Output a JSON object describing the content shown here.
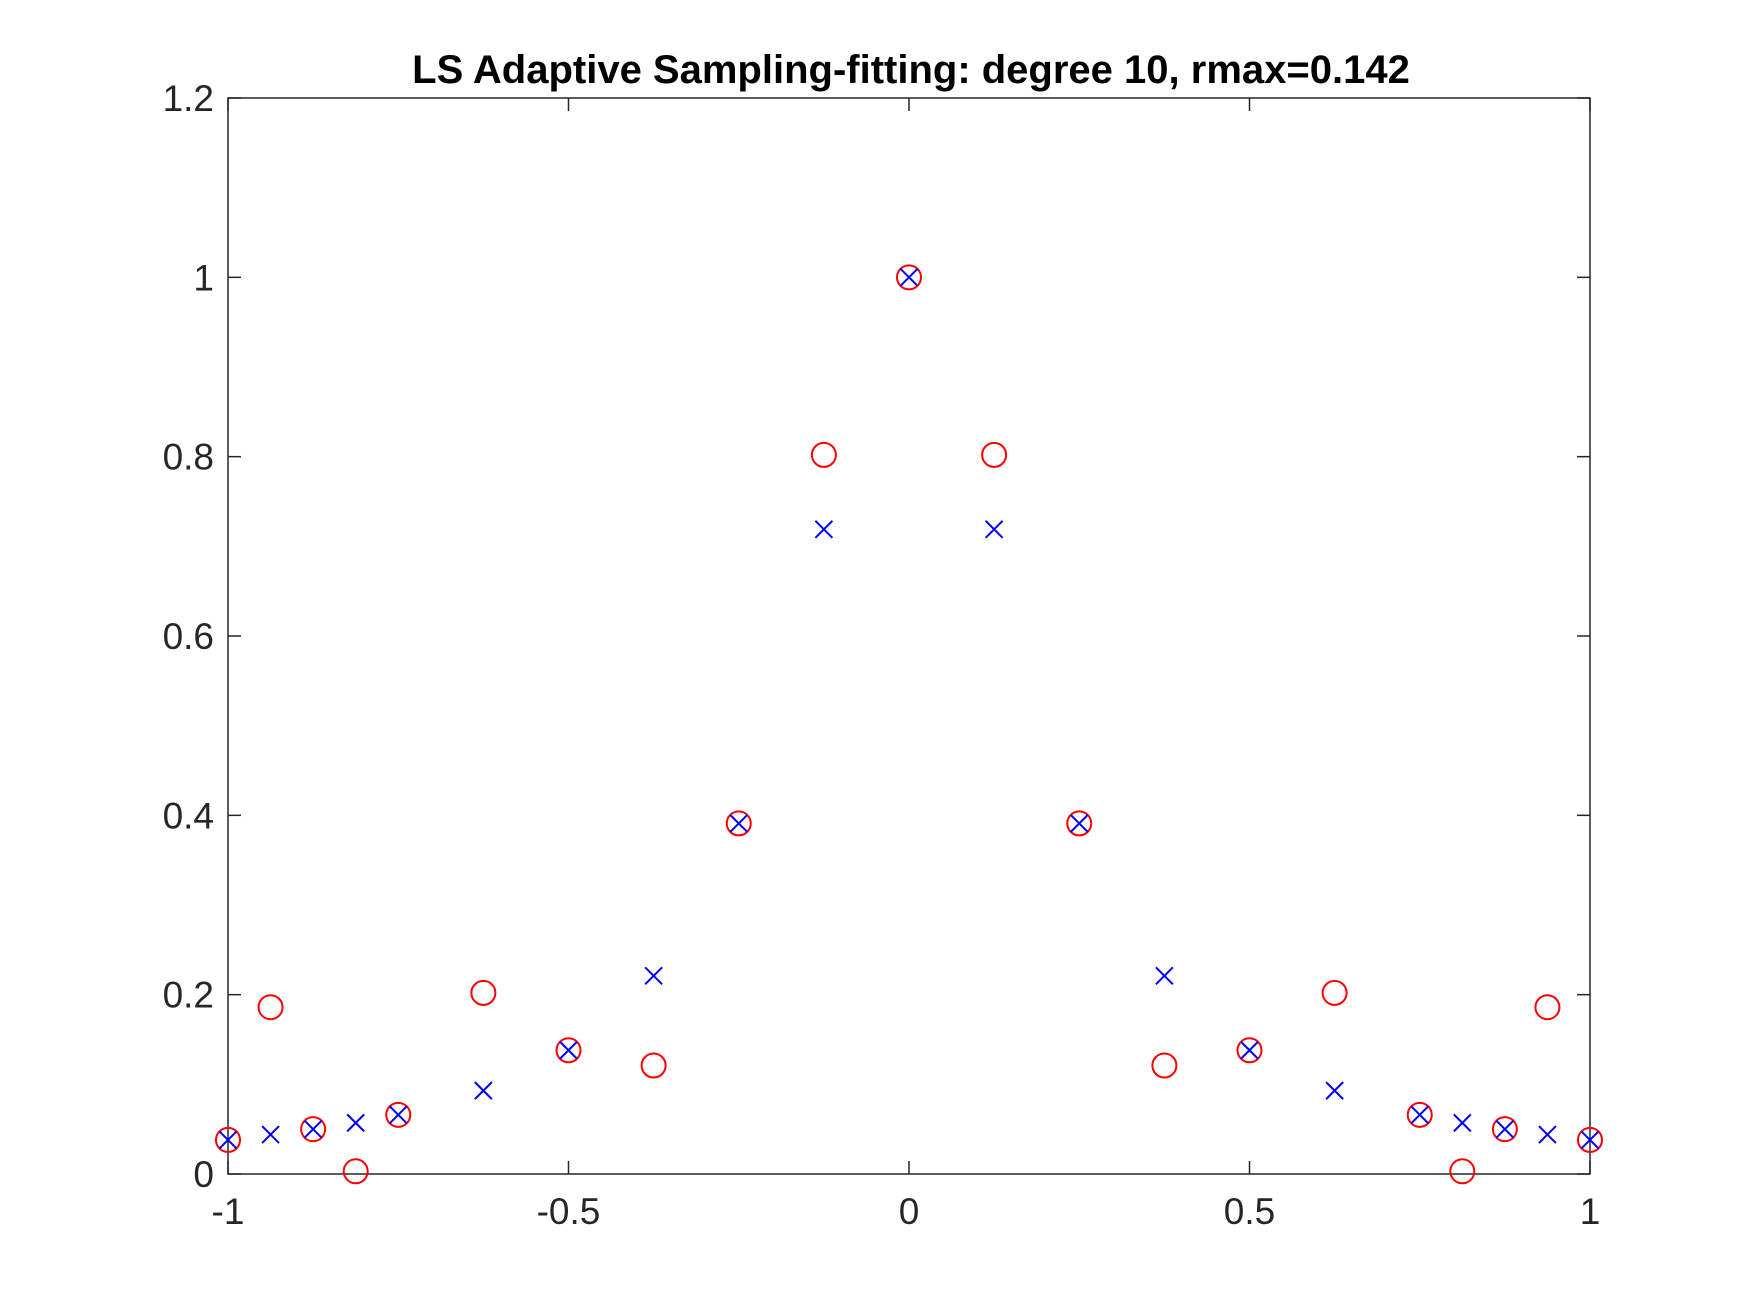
{
  "chart_data": {
    "type": "scatter",
    "title": "LS Adaptive Sampling-fitting: degree 10, rmax=0.142",
    "xlabel": "",
    "ylabel": "",
    "xlim": [
      -1,
      1
    ],
    "ylim": [
      0,
      1.2
    ],
    "xticks": [
      "-1",
      "-0.5",
      "0",
      "0.5",
      "1"
    ],
    "xtick_values": [
      -1,
      -0.5,
      0,
      0.5,
      1
    ],
    "yticks": [
      "0",
      "0.2",
      "0.4",
      "0.6",
      "0.8",
      "1",
      "1.2"
    ],
    "ytick_values": [
      0,
      0.2,
      0.4,
      0.6,
      0.8,
      1,
      1.2
    ],
    "grid": false,
    "series": [
      {
        "marker": "circle",
        "color": "#ff0000",
        "x": [
          -1,
          -0.9375,
          -0.875,
          -0.8125,
          -0.75,
          -0.625,
          -0.5,
          -0.375,
          -0.25,
          -0.125,
          0,
          0.125,
          0.25,
          0.375,
          0.5,
          0.625,
          0.75,
          0.8125,
          0.875,
          0.9375,
          1
        ],
        "y": [
          0.038,
          0.186,
          0.05,
          0.003,
          0.066,
          0.202,
          0.138,
          0.121,
          0.391,
          0.802,
          1.0,
          0.802,
          0.391,
          0.121,
          0.138,
          0.202,
          0.066,
          0.003,
          0.05,
          0.186,
          0.038
        ]
      },
      {
        "marker": "x",
        "color": "#0000ff",
        "x": [
          -1,
          -0.9375,
          -0.875,
          -0.8125,
          -0.75,
          -0.625,
          -0.5,
          -0.375,
          -0.25,
          -0.125,
          0,
          0.125,
          0.25,
          0.375,
          0.5,
          0.625,
          0.75,
          0.8125,
          0.875,
          0.9375,
          1
        ],
        "y": [
          0.038,
          0.044,
          0.05,
          0.057,
          0.066,
          0.093,
          0.138,
          0.221,
          0.391,
          0.719,
          1.0,
          0.719,
          0.391,
          0.221,
          0.138,
          0.093,
          0.066,
          0.057,
          0.05,
          0.044,
          0.038
        ]
      }
    ]
  }
}
